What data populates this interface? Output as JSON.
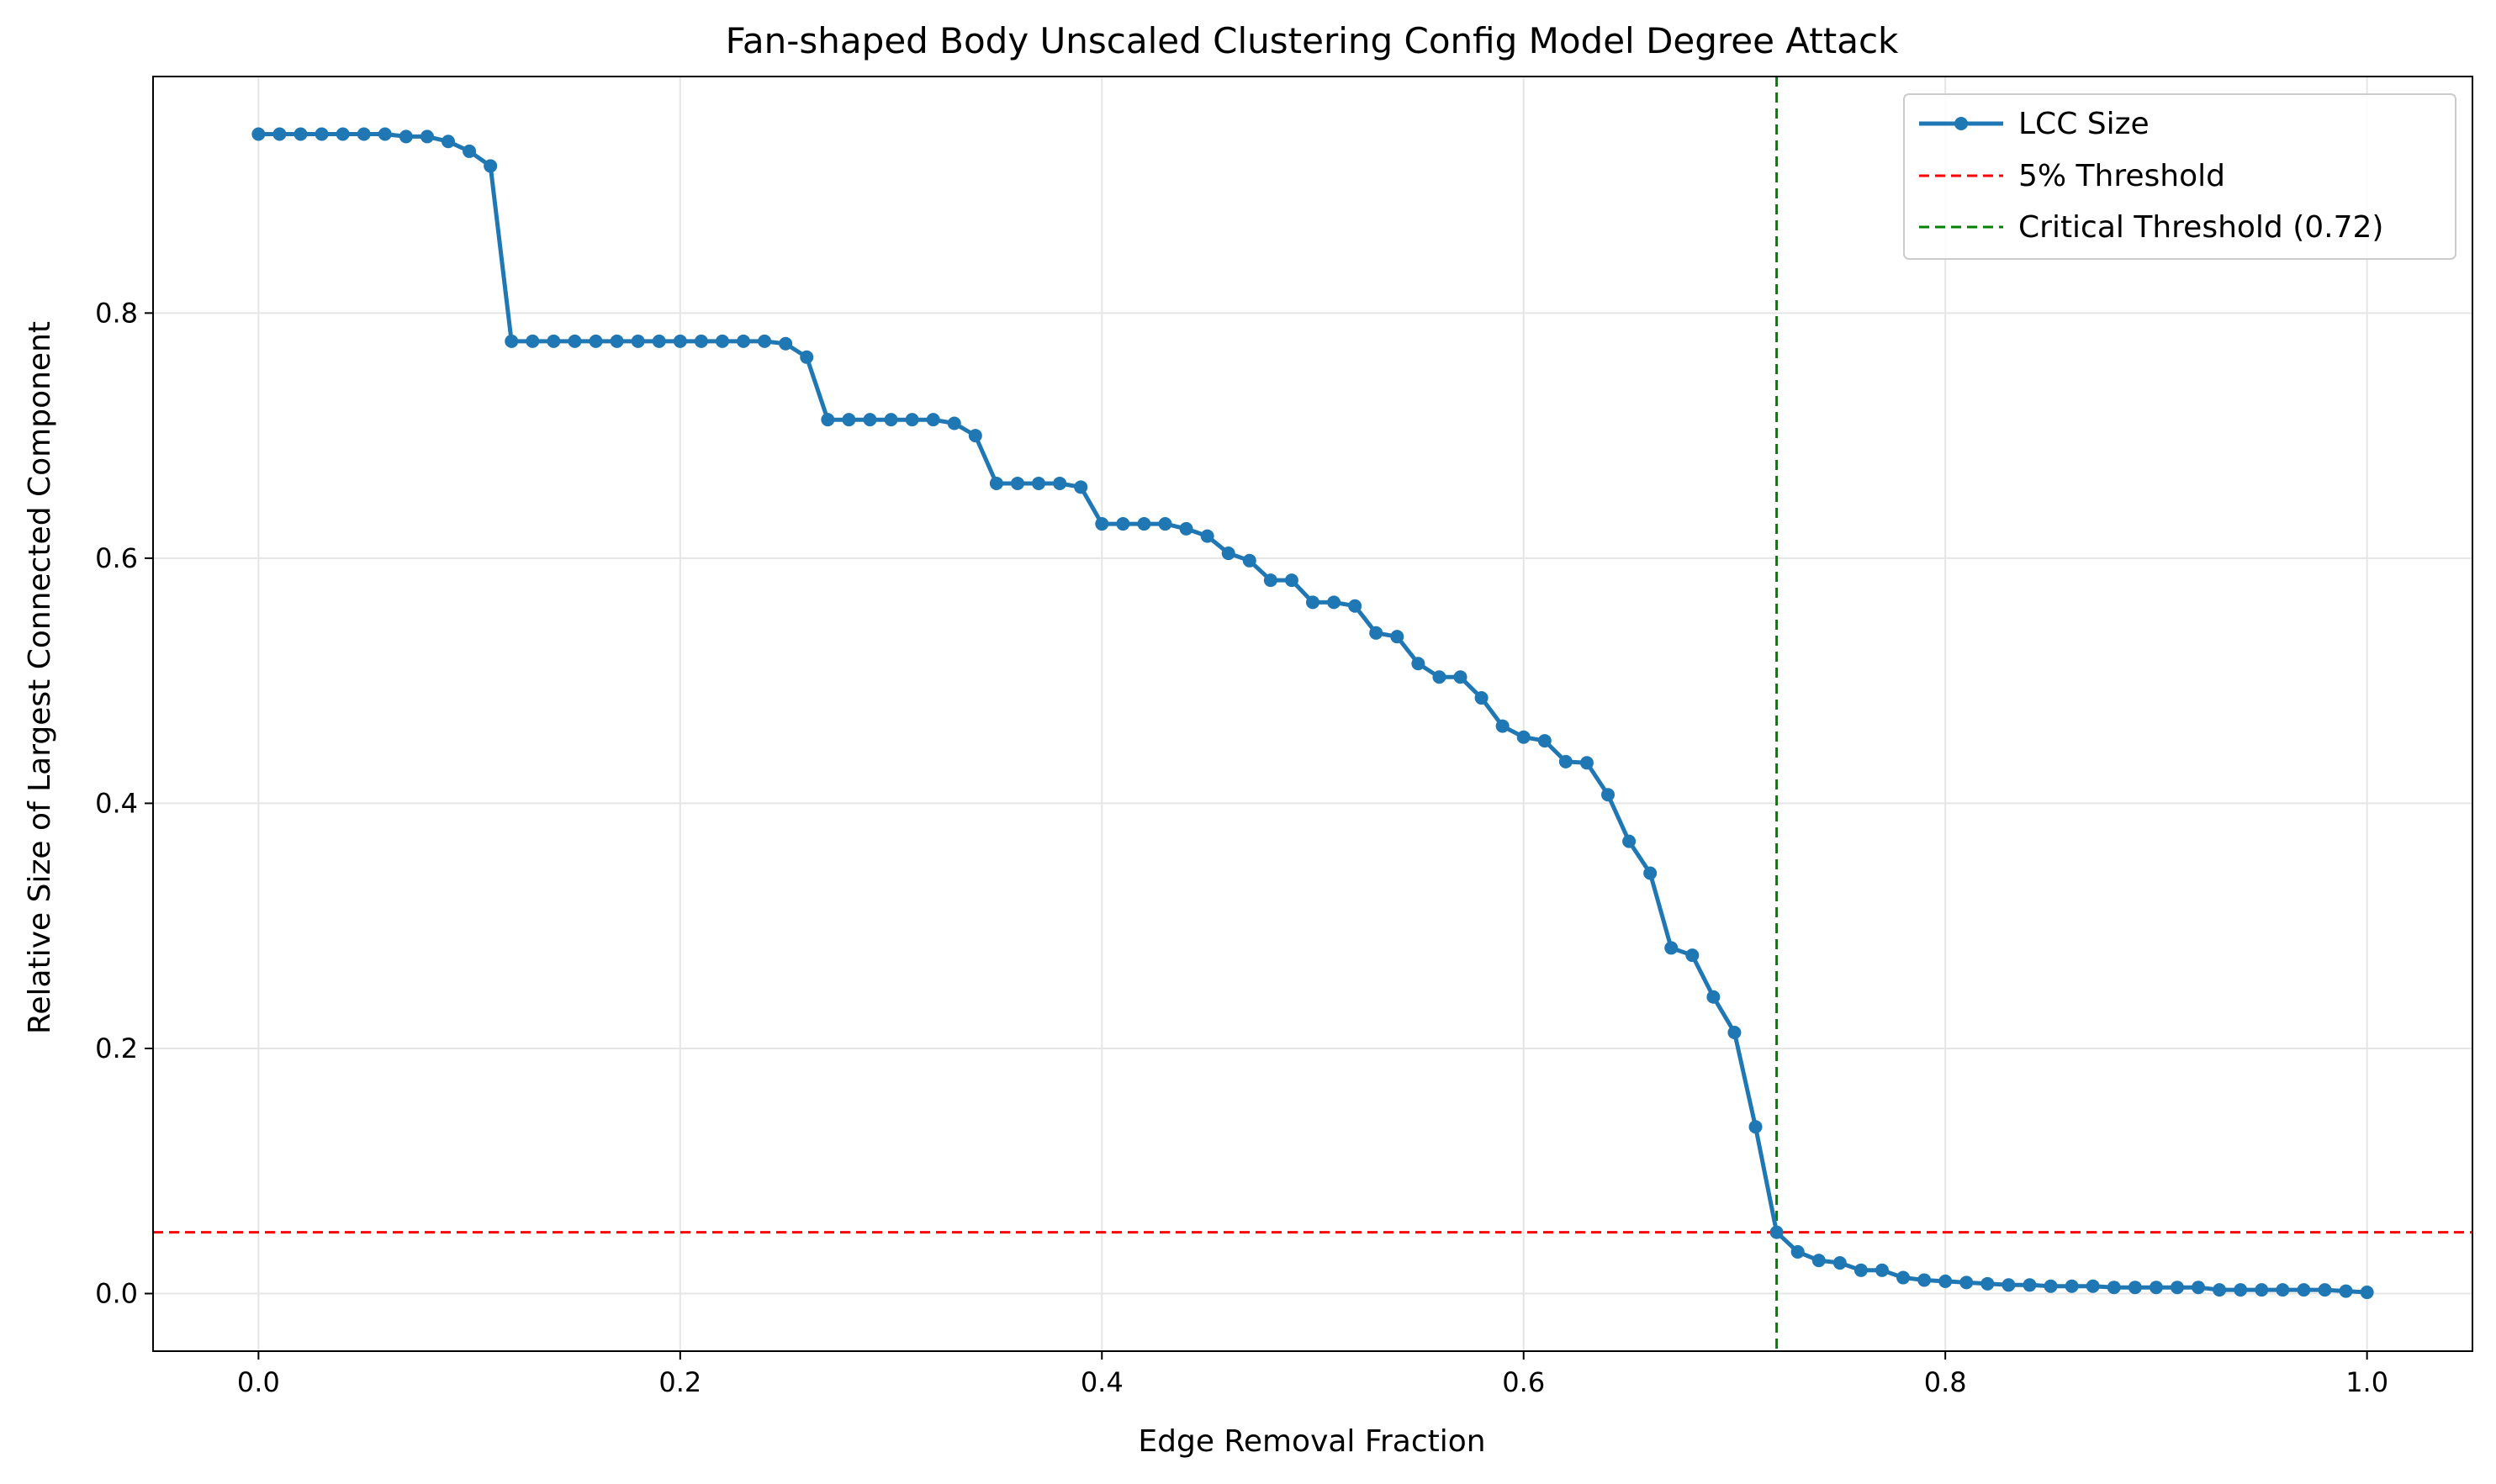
{
  "chart_data": {
    "type": "line",
    "title": "Fan-shaped Body Unscaled Clustering Config Model Degree Attack",
    "xlabel": "Edge Removal Fraction",
    "ylabel": "Relative Size of Largest Connected Component",
    "xlim": [
      -0.05,
      1.05
    ],
    "ylim": [
      -0.047,
      0.993
    ],
    "xticks": [
      0.0,
      0.2,
      0.4,
      0.6,
      0.8,
      1.0
    ],
    "xtick_labels": [
      "0.0",
      "0.2",
      "0.4",
      "0.6",
      "0.8",
      "1.0"
    ],
    "yticks": [
      0.0,
      0.2,
      0.4,
      0.6,
      0.8
    ],
    "ytick_labels": [
      "0.0",
      "0.2",
      "0.4",
      "0.6",
      "0.8"
    ],
    "grid": true,
    "legend_position": "top-right",
    "series": [
      {
        "name": "LCC Size",
        "color": "#1f77b4",
        "x": [
          0.0,
          0.01,
          0.02,
          0.03,
          0.04,
          0.05,
          0.06,
          0.07,
          0.08,
          0.09,
          0.1,
          0.11,
          0.12,
          0.13,
          0.14,
          0.15,
          0.16,
          0.17,
          0.18,
          0.19,
          0.2,
          0.21,
          0.22,
          0.23,
          0.24,
          0.25,
          0.26,
          0.27,
          0.28,
          0.29,
          0.3,
          0.31,
          0.32,
          0.33,
          0.34,
          0.35,
          0.36,
          0.37,
          0.38,
          0.39,
          0.4,
          0.41,
          0.42,
          0.43,
          0.44,
          0.45,
          0.46,
          0.47,
          0.48,
          0.49,
          0.5,
          0.51,
          0.52,
          0.53,
          0.54,
          0.55,
          0.56,
          0.57,
          0.58,
          0.59,
          0.6,
          0.61,
          0.62,
          0.63,
          0.64,
          0.65,
          0.66,
          0.67,
          0.68,
          0.69,
          0.7,
          0.71,
          0.72,
          0.73,
          0.74,
          0.75,
          0.76,
          0.77,
          0.78,
          0.79,
          0.8,
          0.81,
          0.82,
          0.83,
          0.84,
          0.85,
          0.86,
          0.87,
          0.88,
          0.89,
          0.9,
          0.91,
          0.92,
          0.93,
          0.94,
          0.95,
          0.96,
          0.97,
          0.98,
          0.99,
          1.0
        ],
        "y": [
          0.946,
          0.946,
          0.946,
          0.946,
          0.946,
          0.946,
          0.946,
          0.944,
          0.944,
          0.94,
          0.932,
          0.92,
          0.777,
          0.777,
          0.777,
          0.777,
          0.777,
          0.777,
          0.777,
          0.777,
          0.777,
          0.777,
          0.777,
          0.777,
          0.777,
          0.775,
          0.764,
          0.713,
          0.713,
          0.713,
          0.713,
          0.713,
          0.713,
          0.71,
          0.7,
          0.661,
          0.661,
          0.661,
          0.661,
          0.658,
          0.628,
          0.628,
          0.628,
          0.628,
          0.624,
          0.618,
          0.604,
          0.598,
          0.582,
          0.582,
          0.564,
          0.564,
          0.561,
          0.539,
          0.536,
          0.514,
          0.503,
          0.503,
          0.486,
          0.463,
          0.454,
          0.451,
          0.434,
          0.433,
          0.407,
          0.369,
          0.343,
          0.282,
          0.276,
          0.242,
          0.213,
          0.136,
          0.05,
          0.034,
          0.027,
          0.025,
          0.019,
          0.019,
          0.013,
          0.011,
          0.01,
          0.009,
          0.008,
          0.007,
          0.007,
          0.006,
          0.006,
          0.006,
          0.005,
          0.005,
          0.005,
          0.005,
          0.005,
          0.003,
          0.003,
          0.003,
          0.003,
          0.003,
          0.003,
          0.002,
          0.001
        ]
      },
      {
        "name": "5% Threshold",
        "color": "#ff0000",
        "orientation": "horizontal",
        "value": 0.05
      },
      {
        "name": "Critical Threshold (0.72)",
        "color": "#008000",
        "orientation": "vertical",
        "value": 0.72
      }
    ]
  }
}
